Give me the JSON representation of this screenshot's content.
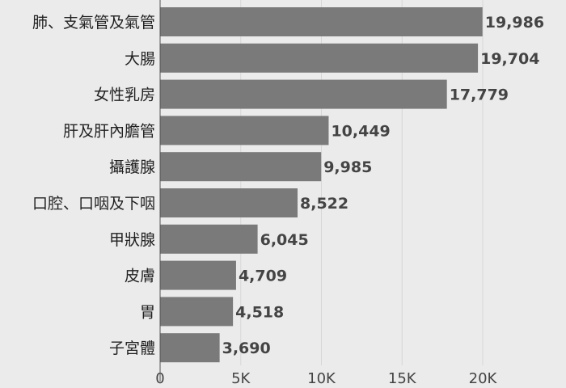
{
  "chart_data": {
    "type": "bar",
    "orientation": "horizontal",
    "title": "",
    "xlabel": "",
    "ylabel": "",
    "categories": [
      "肺、支氣管及氣管",
      "大腸",
      "女性乳房",
      "肝及肝內膽管",
      "攝護腺",
      "口腔、口咽及下咽",
      "甲狀腺",
      "皮膚",
      "胃",
      "子宮體"
    ],
    "values": [
      19986,
      19704,
      17779,
      10449,
      9985,
      8522,
      6045,
      4709,
      4518,
      3690
    ],
    "value_labels": [
      "19,986",
      "19,704",
      "17,779",
      "10,449",
      "9,985",
      "8,522",
      "6,045",
      "4,709",
      "4,518",
      "3,690"
    ],
    "x_ticks": [
      0,
      5000,
      10000,
      15000,
      20000
    ],
    "x_tick_labels": [
      "0",
      "5K",
      "10K",
      "15K",
      "20K"
    ],
    "xlim": [
      0,
      25000
    ],
    "grid": true,
    "legend": "none",
    "colors": {
      "bar": "#7a7a7a",
      "background": "#ebebeb",
      "grid": "#d7d7d7"
    }
  }
}
